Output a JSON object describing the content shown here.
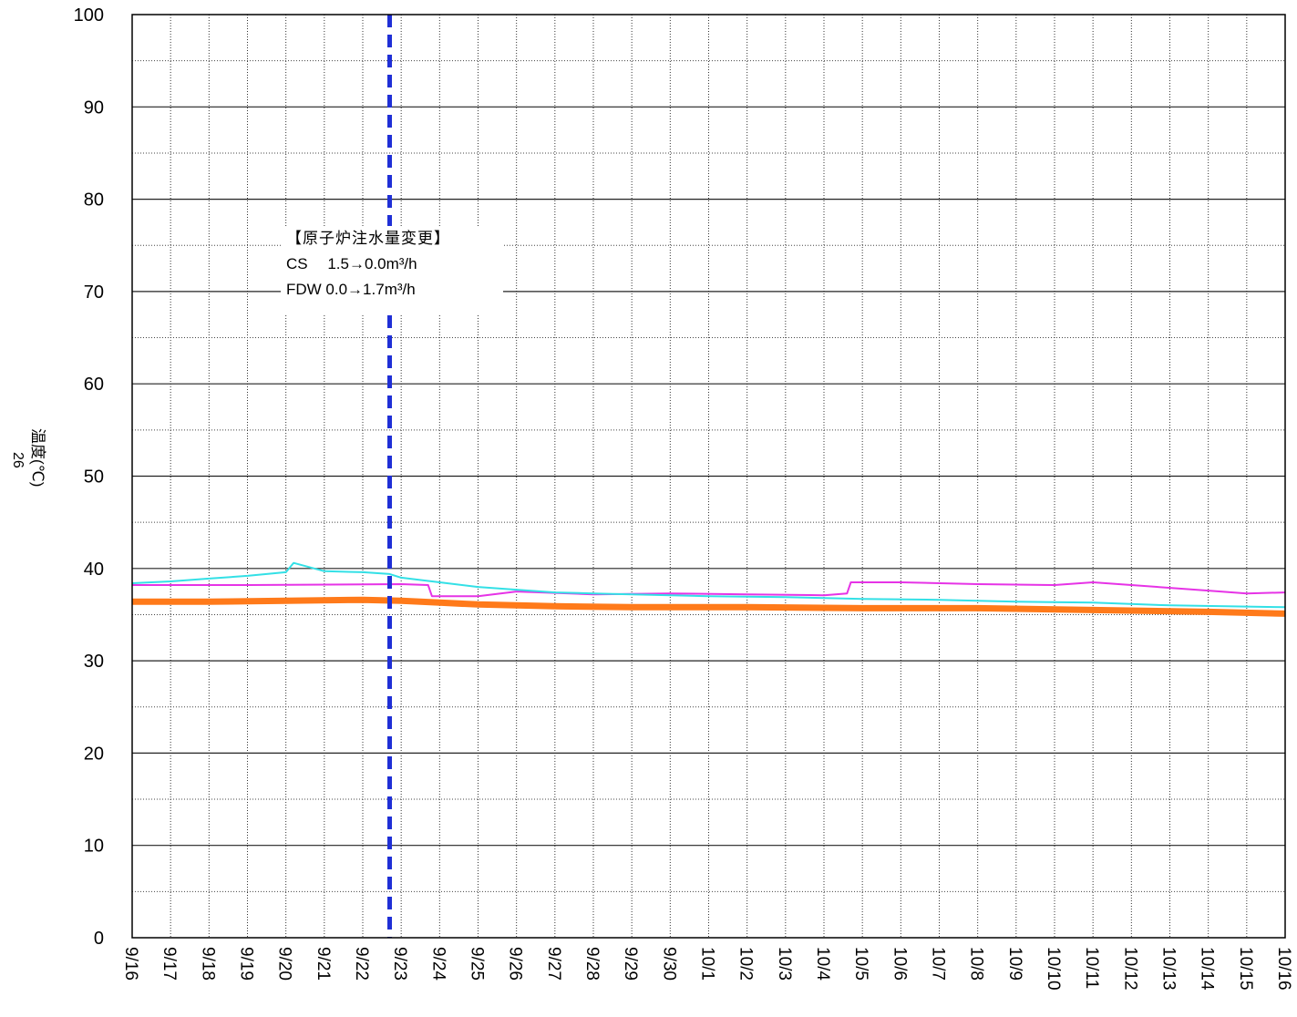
{
  "page_number": "26",
  "chart_data": {
    "type": "line",
    "ylabel": "温度(℃)",
    "ylim": [
      0,
      100
    ],
    "yticks": [
      "0",
      "10",
      "20",
      "30",
      "40",
      "50",
      "60",
      "70",
      "80",
      "90",
      "100"
    ],
    "x_categories": [
      "9/16",
      "9/17",
      "9/18",
      "9/19",
      "9/20",
      "9/21",
      "9/22",
      "9/23",
      "9/24",
      "9/25",
      "9/26",
      "9/27",
      "9/28",
      "9/29",
      "9/30",
      "10/1",
      "10/2",
      "10/3",
      "10/4",
      "10/5",
      "10/6",
      "10/7",
      "10/8",
      "10/9",
      "10/10",
      "10/11",
      "10/12",
      "10/13",
      "10/14",
      "10/15",
      "10/16"
    ],
    "grid": true,
    "event_marker": {
      "x_day": 6.7,
      "color": "#1f2fd6",
      "style": "dashed"
    },
    "annotation": {
      "title": "【原子炉注水量変更】",
      "line1": "CS　 1.5→0.0m³/h",
      "line2": "FDW  0.0→1.7m³/h"
    },
    "series": [
      {
        "color": "#ff7a1a",
        "width": 7,
        "x": [
          0,
          2,
          4,
          6,
          7,
          8,
          9,
          11,
          13,
          16,
          19,
          22,
          25,
          28,
          30
        ],
        "y": [
          36.4,
          36.4,
          36.5,
          36.6,
          36.5,
          36.3,
          36.1,
          35.9,
          35.8,
          35.8,
          35.7,
          35.7,
          35.5,
          35.3,
          35.1
        ]
      },
      {
        "color": "#e633e6",
        "width": 2,
        "x": [
          0,
          3,
          7,
          7.7,
          7.8,
          9,
          10,
          12,
          14,
          16,
          18,
          18.6,
          18.7,
          20,
          22,
          24,
          25,
          26,
          28,
          29,
          30
        ],
        "y": [
          38.2,
          38.2,
          38.3,
          38.2,
          37.0,
          37.0,
          37.5,
          37.2,
          37.3,
          37.2,
          37.1,
          37.3,
          38.5,
          38.5,
          38.3,
          38.2,
          38.5,
          38.2,
          37.6,
          37.3,
          37.4
        ]
      },
      {
        "color": "#33e0e6",
        "width": 2,
        "x": [
          0,
          1,
          2,
          3,
          4,
          4.2,
          5,
          6,
          6.7,
          7,
          8,
          9,
          10,
          11,
          12,
          13,
          15,
          17,
          19,
          21,
          23,
          25,
          27,
          30
        ],
        "y": [
          38.4,
          38.6,
          38.9,
          39.2,
          39.6,
          40.6,
          39.7,
          39.6,
          39.4,
          39.0,
          38.5,
          38.0,
          37.7,
          37.4,
          37.3,
          37.2,
          37.0,
          36.9,
          36.7,
          36.6,
          36.4,
          36.3,
          36.0,
          35.8
        ]
      }
    ]
  }
}
